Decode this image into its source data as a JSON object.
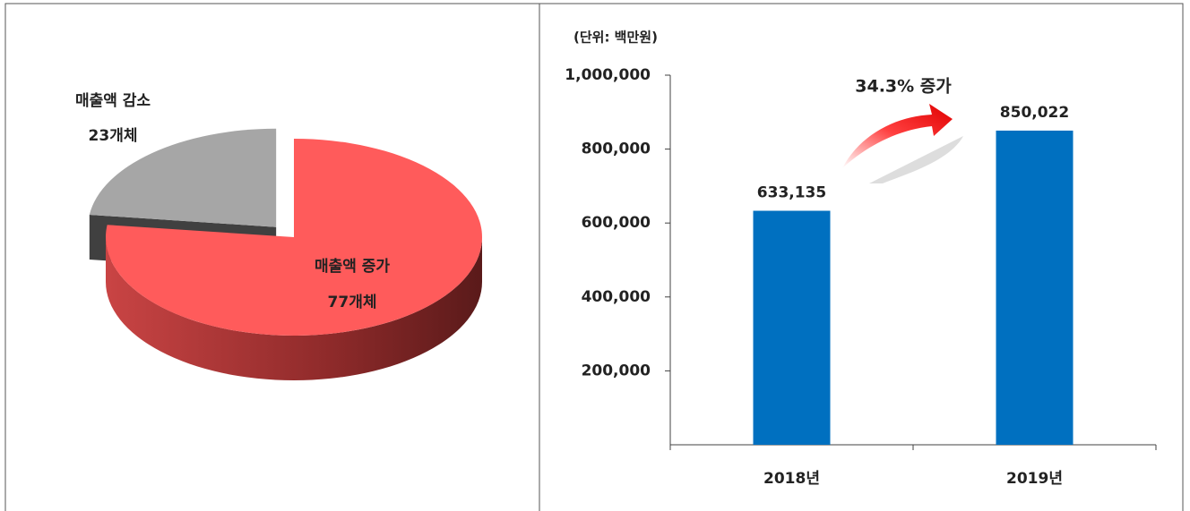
{
  "chart_data": [
    {
      "type": "pie",
      "categories": [
        "매출액 감소",
        "매출액 증가"
      ],
      "values": [
        23,
        77
      ],
      "value_labels": [
        "23개체",
        "77개체"
      ],
      "colors": [
        "#a6a6a6",
        "#ff5b5b"
      ]
    },
    {
      "type": "bar",
      "subtitle": "(단위: 백만원)",
      "annotation": "34.3% 증가",
      "categories": [
        "2018년",
        "2019년"
      ],
      "values": [
        633135,
        850022
      ],
      "value_labels": [
        "633,135",
        "850,022"
      ],
      "color": "#0070c0",
      "ylim": [
        0,
        1000000
      ],
      "yticks": [
        {
          "value": 200000,
          "label": "200,000"
        },
        {
          "value": 400000,
          "label": "400,000"
        },
        {
          "value": 600000,
          "label": "600,000"
        },
        {
          "value": 800000,
          "label": "800,000"
        },
        {
          "value": 1000000,
          "label": "1,000,000"
        }
      ]
    }
  ]
}
